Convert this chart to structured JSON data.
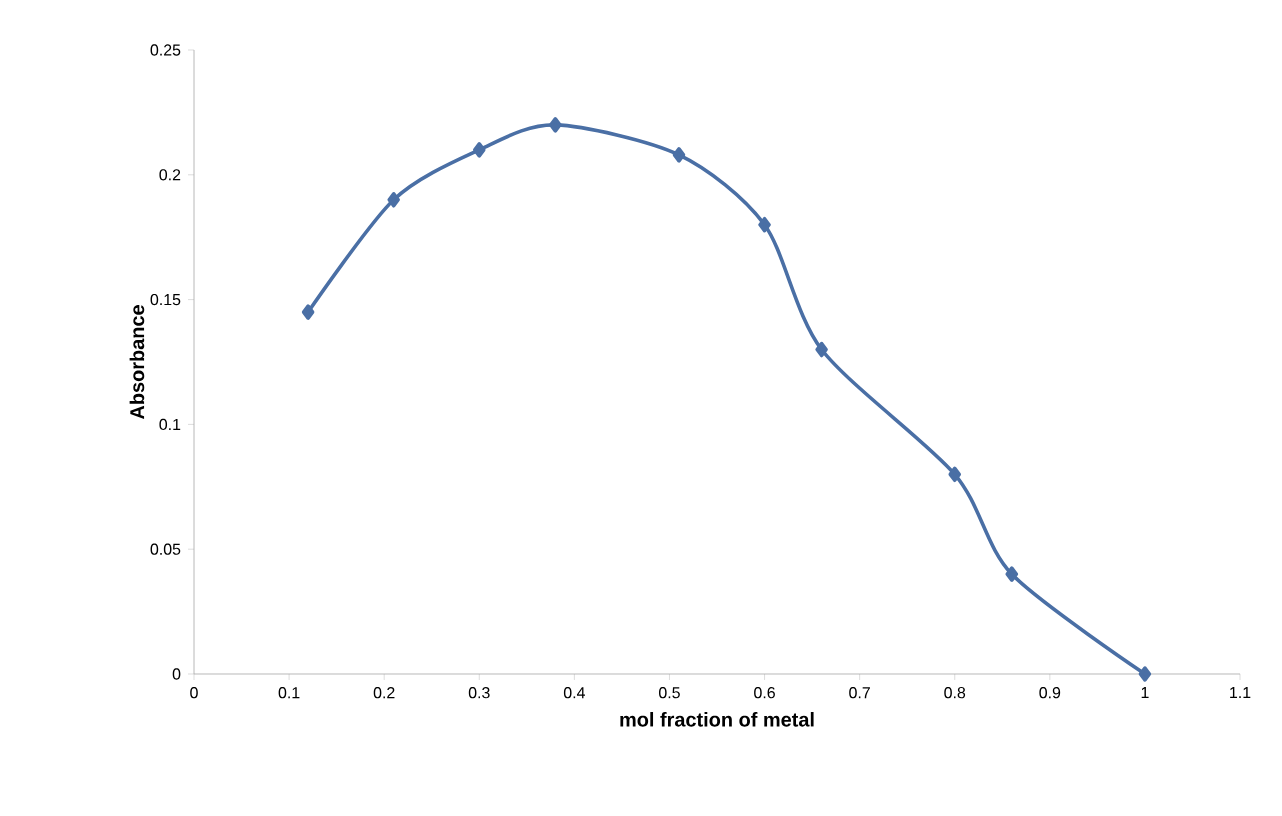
{
  "chart_data": {
    "type": "line",
    "xlabel": "mol fraction of metal",
    "ylabel": "Absorbance",
    "x": [
      0.12,
      0.21,
      0.3,
      0.38,
      0.51,
      0.6,
      0.66,
      0.8,
      0.86,
      1.0
    ],
    "series": [
      {
        "color": "#4a6fa5",
        "values": [
          0.145,
          0.19,
          0.21,
          0.22,
          0.208,
          0.18,
          0.13,
          0.08,
          0.04,
          0.0
        ]
      }
    ],
    "xlim": [
      0,
      1.1
    ],
    "xticks": [
      0,
      0.1,
      0.2,
      0.3,
      0.4,
      0.5,
      0.6,
      0.7,
      0.8,
      0.9,
      1,
      1.1
    ],
    "ylim": [
      0,
      0.25
    ],
    "yticks": [
      0,
      0.05,
      0.1,
      0.15,
      0.2,
      0.25
    ],
    "grid": false,
    "marker": "diamond",
    "line_style": "solid"
  }
}
